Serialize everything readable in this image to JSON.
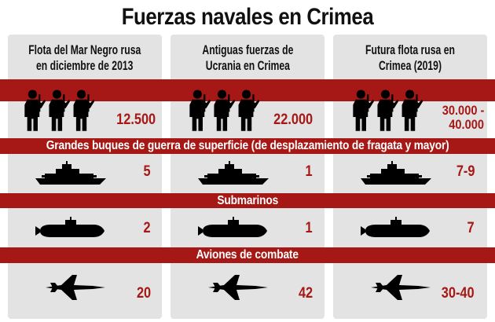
{
  "title": "Fuerzas navales en Crimea",
  "colors": {
    "accent": "#a51815",
    "panel": "#e3e3e3",
    "text": "#111111"
  },
  "columns": [
    {
      "heading_line1": "Flota del Mar Negro rusa",
      "heading_line2": "en diciembre de 2013",
      "personnel": "12.500",
      "surface_ships": "5",
      "submarines": "2",
      "combat_aircraft": "20"
    },
    {
      "heading_line1": "Antiguas fuerzas de",
      "heading_line2": "Ucrania en Crimea",
      "personnel": "22.000",
      "surface_ships": "1",
      "submarines": "1",
      "combat_aircraft": "42"
    },
    {
      "heading_line1": "Futura flota rusa en",
      "heading_line2": "Crimea (2019)",
      "personnel_line1": "30.000 -",
      "personnel_line2": "40.000",
      "surface_ships": "7-9",
      "submarines": "7",
      "combat_aircraft": "30-40"
    }
  ],
  "categories": {
    "surface_ships": "Grandes buques de guerra de superficie (de desplazamiento de fragata y mayor)",
    "submarines": "Submarinos",
    "combat_aircraft": "Aviones de combate"
  },
  "icons": [
    "soldier-icon",
    "warship-icon",
    "submarine-icon",
    "fighter-jet-icon"
  ]
}
